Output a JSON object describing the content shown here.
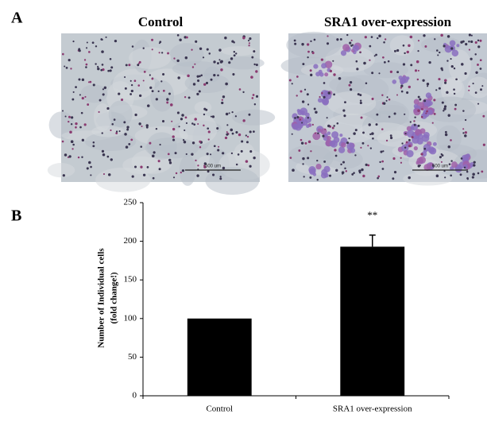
{
  "panel_a": {
    "label": "A",
    "images": [
      {
        "title": "Control",
        "scale_bar": "500 um"
      },
      {
        "title": "SRA1 over-expression",
        "scale_bar": "500 um"
      }
    ]
  },
  "chart_data": {
    "type": "bar",
    "panel_label": "B",
    "categories": [
      "Control",
      "SRA1 over-expression"
    ],
    "values": [
      100,
      193
    ],
    "errors": [
      null,
      15
    ],
    "color": "#000000",
    "ylabel": [
      "Number of Individual  cells",
      "(fold change!)"
    ],
    "annotations": [
      {
        "category": 1,
        "text": "**"
      }
    ],
    "ylim": [
      0,
      250
    ],
    "yticks": [
      0,
      50,
      100,
      150,
      200,
      250
    ]
  }
}
